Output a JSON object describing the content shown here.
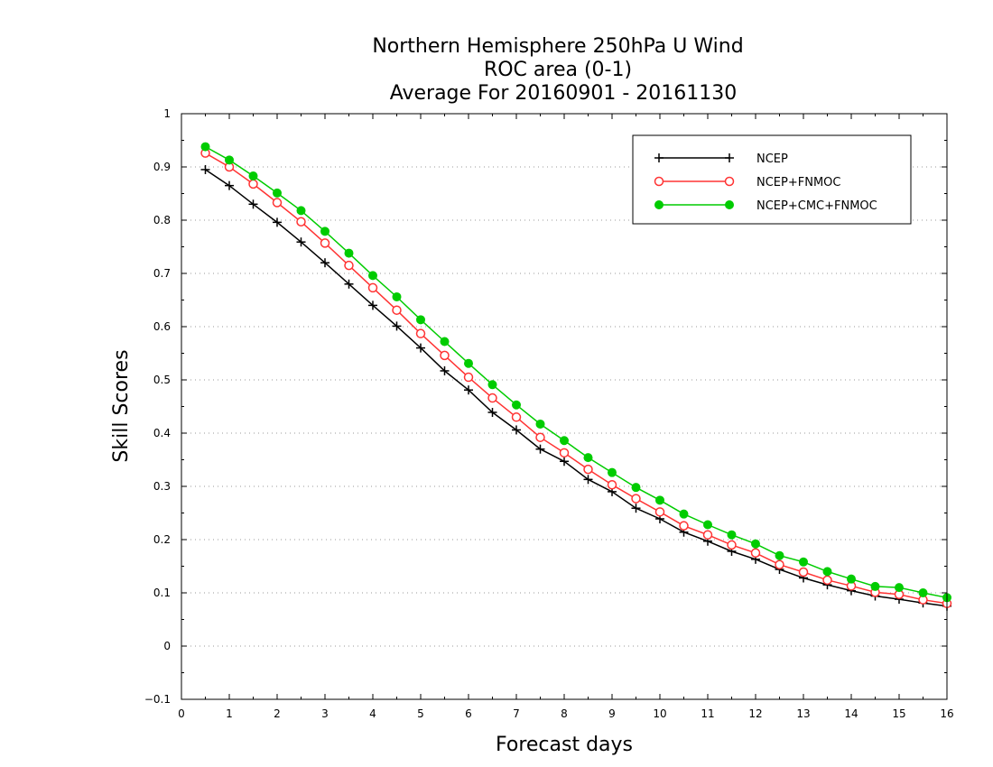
{
  "chart_data": {
    "type": "line",
    "title_lines": [
      "Northern Hemisphere 250hPa U Wind",
      "ROC area (0-1)",
      "Average For 20160901 - 20161130"
    ],
    "xlabel": "Forecast days",
    "ylabel": "Skill Scores",
    "xlim": [
      0,
      16
    ],
    "ylim": [
      -0.1,
      1
    ],
    "x_ticks": [
      "0",
      "1",
      "2",
      "3",
      "4",
      "5",
      "6",
      "7",
      "8",
      "9",
      "10",
      "11",
      "12",
      "13",
      "14",
      "15",
      "16"
    ],
    "y_ticks": [
      "-0.1",
      "0",
      "0.1",
      "0.2",
      "0.3",
      "0.4",
      "0.5",
      "0.6",
      "0.7",
      "0.8",
      "0.9",
      "1"
    ],
    "grid": true,
    "legend_position": "top-right",
    "x": [
      0.5,
      1,
      1.5,
      2,
      2.5,
      3,
      3.5,
      4,
      4.5,
      5,
      5.5,
      6,
      6.5,
      7,
      7.5,
      8,
      8.5,
      9,
      9.5,
      10,
      10.5,
      11,
      11.5,
      12,
      12.5,
      13,
      13.5,
      14,
      14.5,
      15,
      15.5,
      16
    ],
    "series": [
      {
        "name": "NCEP",
        "color": "#000000",
        "marker": "plus",
        "values": [
          0.895,
          0.865,
          0.83,
          0.796,
          0.759,
          0.72,
          0.68,
          0.64,
          0.601,
          0.56,
          0.517,
          0.481,
          0.439,
          0.406,
          0.37,
          0.347,
          0.313,
          0.29,
          0.259,
          0.239,
          0.214,
          0.197,
          0.178,
          0.163,
          0.144,
          0.128,
          0.115,
          0.104,
          0.094,
          0.088,
          0.081,
          0.075
        ]
      },
      {
        "name": "NCEP+FNMOC",
        "color": "#ff3333",
        "marker": "open-circle",
        "values": [
          0.926,
          0.9,
          0.868,
          0.833,
          0.797,
          0.757,
          0.715,
          0.673,
          0.631,
          0.587,
          0.546,
          0.505,
          0.466,
          0.43,
          0.392,
          0.363,
          0.332,
          0.303,
          0.277,
          0.252,
          0.226,
          0.209,
          0.19,
          0.175,
          0.153,
          0.139,
          0.124,
          0.113,
          0.101,
          0.097,
          0.087,
          0.08
        ]
      },
      {
        "name": "NCEP+CMC+FNMOC",
        "color": "#00cc00",
        "marker": "filled-circle",
        "values": [
          0.938,
          0.913,
          0.883,
          0.851,
          0.818,
          0.779,
          0.738,
          0.696,
          0.656,
          0.613,
          0.572,
          0.531,
          0.491,
          0.453,
          0.417,
          0.386,
          0.354,
          0.326,
          0.298,
          0.274,
          0.248,
          0.228,
          0.209,
          0.192,
          0.17,
          0.158,
          0.14,
          0.126,
          0.112,
          0.11,
          0.1,
          0.091
        ]
      }
    ]
  }
}
